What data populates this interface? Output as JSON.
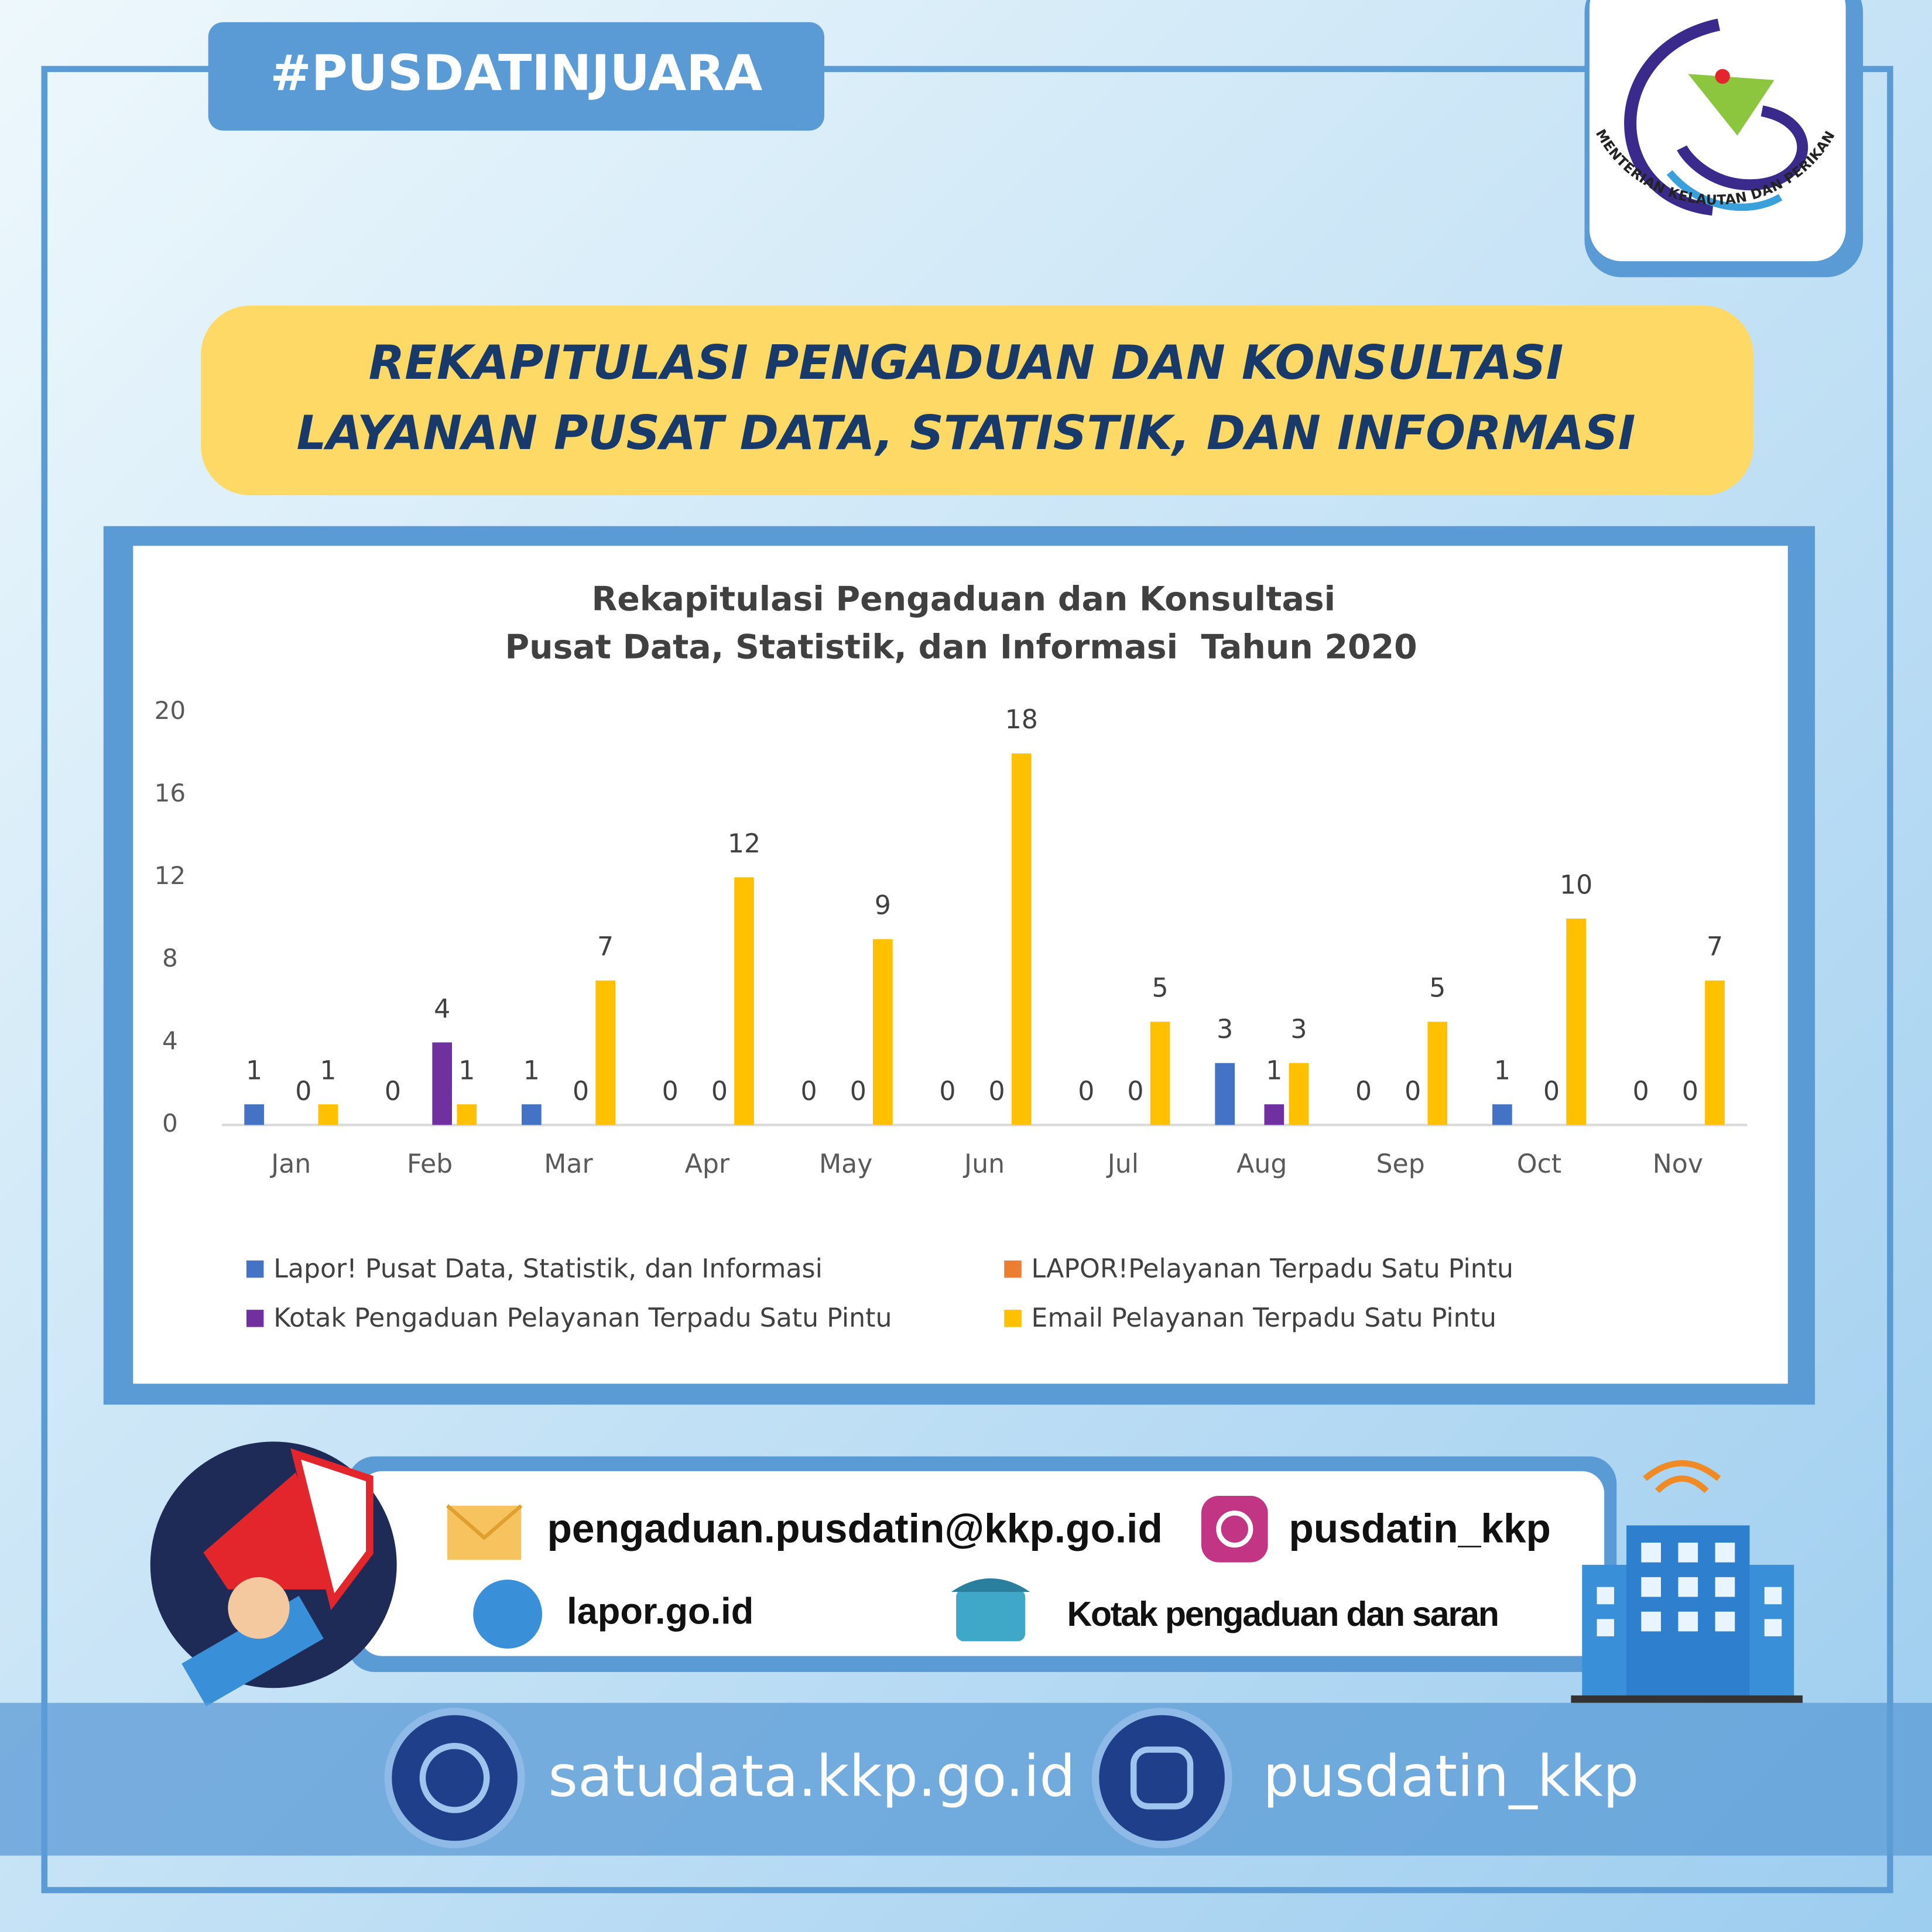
{
  "hashtag": "#PUSDATINJUARA",
  "logo_text": "KEMENTERIAN KELAUTAN DAN PERIKANAN",
  "banner": {
    "line1": "REKAPITULASI PENGADUAN DAN KONSULTASI",
    "line2": "LAYANAN PUSAT DATA, STATISTIK, DAN INFORMASI"
  },
  "chart_data": {
    "type": "bar",
    "title": "Rekapitulasi Pengaduan dan Konsultasi",
    "subtitle": "Pusat Data, Statistik, dan Informasi  Tahun 2020",
    "categories": [
      "Jan",
      "Feb",
      "Mar",
      "Apr",
      "May",
      "Jun",
      "Jul",
      "Aug",
      "Sep",
      "Oct",
      "Nov"
    ],
    "series": [
      {
        "name": "Lapor! Pusat Data, Statistik, dan Informasi",
        "color": "#4472c4",
        "values": [
          1,
          0,
          1,
          0,
          0,
          0,
          0,
          3,
          0,
          1,
          0
        ]
      },
      {
        "name": "LAPOR!Pelayanan Terpadu Satu Pintu",
        "color": "#ed7d31",
        "values": [
          null,
          null,
          null,
          null,
          null,
          null,
          null,
          null,
          null,
          null,
          null
        ]
      },
      {
        "name": "Kotak Pengaduan Pelayanan Terpadu Satu Pintu",
        "color": "#7030a0",
        "values": [
          0,
          4,
          0,
          0,
          0,
          0,
          0,
          1,
          0,
          0,
          0
        ]
      },
      {
        "name": "Email Pelayanan Terpadu Satu Pintu",
        "color": "#ffc000",
        "values": [
          1,
          1,
          7,
          12,
          9,
          18,
          5,
          3,
          5,
          10,
          7
        ]
      }
    ],
    "ylim": [
      0,
      20
    ],
    "yticks": [
      0,
      4,
      8,
      12,
      16,
      20
    ],
    "grid": false,
    "data_labels": true,
    "legend": "bottom"
  },
  "contacts": {
    "email": "pengaduan.pusdatin@kkp.go.id",
    "instagram": "pusdatin_kkp",
    "lapor": "lapor.go.id",
    "kotak": "Kotak pengaduan dan saran"
  },
  "footer": {
    "website": "satudata.kkp.go.id",
    "instagram": "pusdatin_kkp"
  }
}
